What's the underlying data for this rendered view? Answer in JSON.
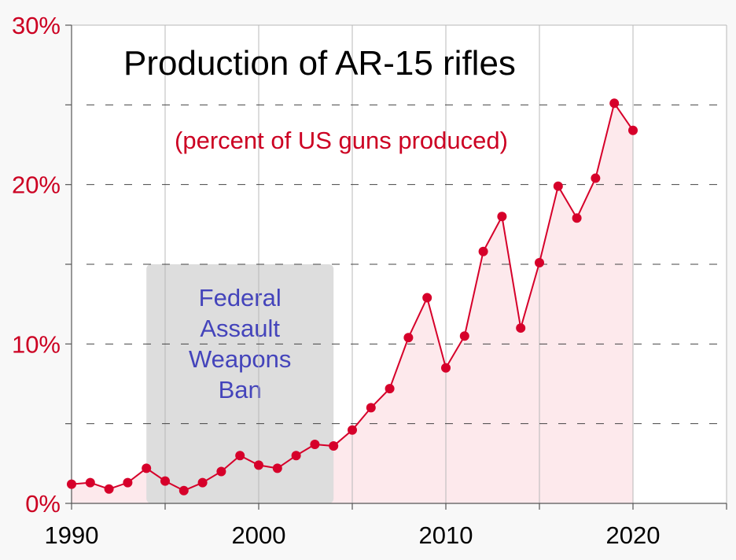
{
  "chart_data": {
    "type": "area",
    "title": "Production of AR-15 rifles",
    "subtitle": "(percent of US guns produced)",
    "x_ticks": [
      "1990",
      "2000",
      "2010",
      "2020"
    ],
    "y_ticks": [
      "0%",
      "10%",
      "20%",
      "30%"
    ],
    "xlim": [
      1990,
      2025
    ],
    "ylim": [
      0,
      30
    ],
    "grid": true,
    "annotation": {
      "lines": [
        "Federal",
        "Assault",
        "Weapons",
        "Ban"
      ],
      "x_range": [
        1994,
        2004
      ],
      "y_top": 15
    },
    "series": [
      {
        "x": [
          1990,
          1991,
          1992,
          1993,
          1994,
          1995,
          1996,
          1997,
          1998,
          1999,
          2000,
          2001,
          2002,
          2003,
          2004,
          2005,
          2006,
          2007,
          2008,
          2009,
          2010,
          2011,
          2012,
          2013,
          2014,
          2015,
          2016,
          2017,
          2018,
          2019,
          2020
        ],
        "values": [
          1.2,
          1.3,
          0.9,
          1.3,
          2.2,
          1.4,
          0.8,
          1.3,
          2.0,
          3.0,
          2.4,
          2.2,
          3.0,
          3.7,
          3.6,
          4.6,
          6.0,
          7.2,
          10.4,
          12.9,
          8.5,
          10.5,
          15.8,
          18.0,
          11.0,
          15.1,
          19.9,
          17.9,
          20.4,
          25.1,
          23.4
        ]
      }
    ],
    "colors": {
      "line": "#d6002a",
      "fill": "#fde9ec",
      "annotation_box": "#dddddd",
      "annotation_text": "#4444bb",
      "tick_text": "#cc0022"
    }
  }
}
